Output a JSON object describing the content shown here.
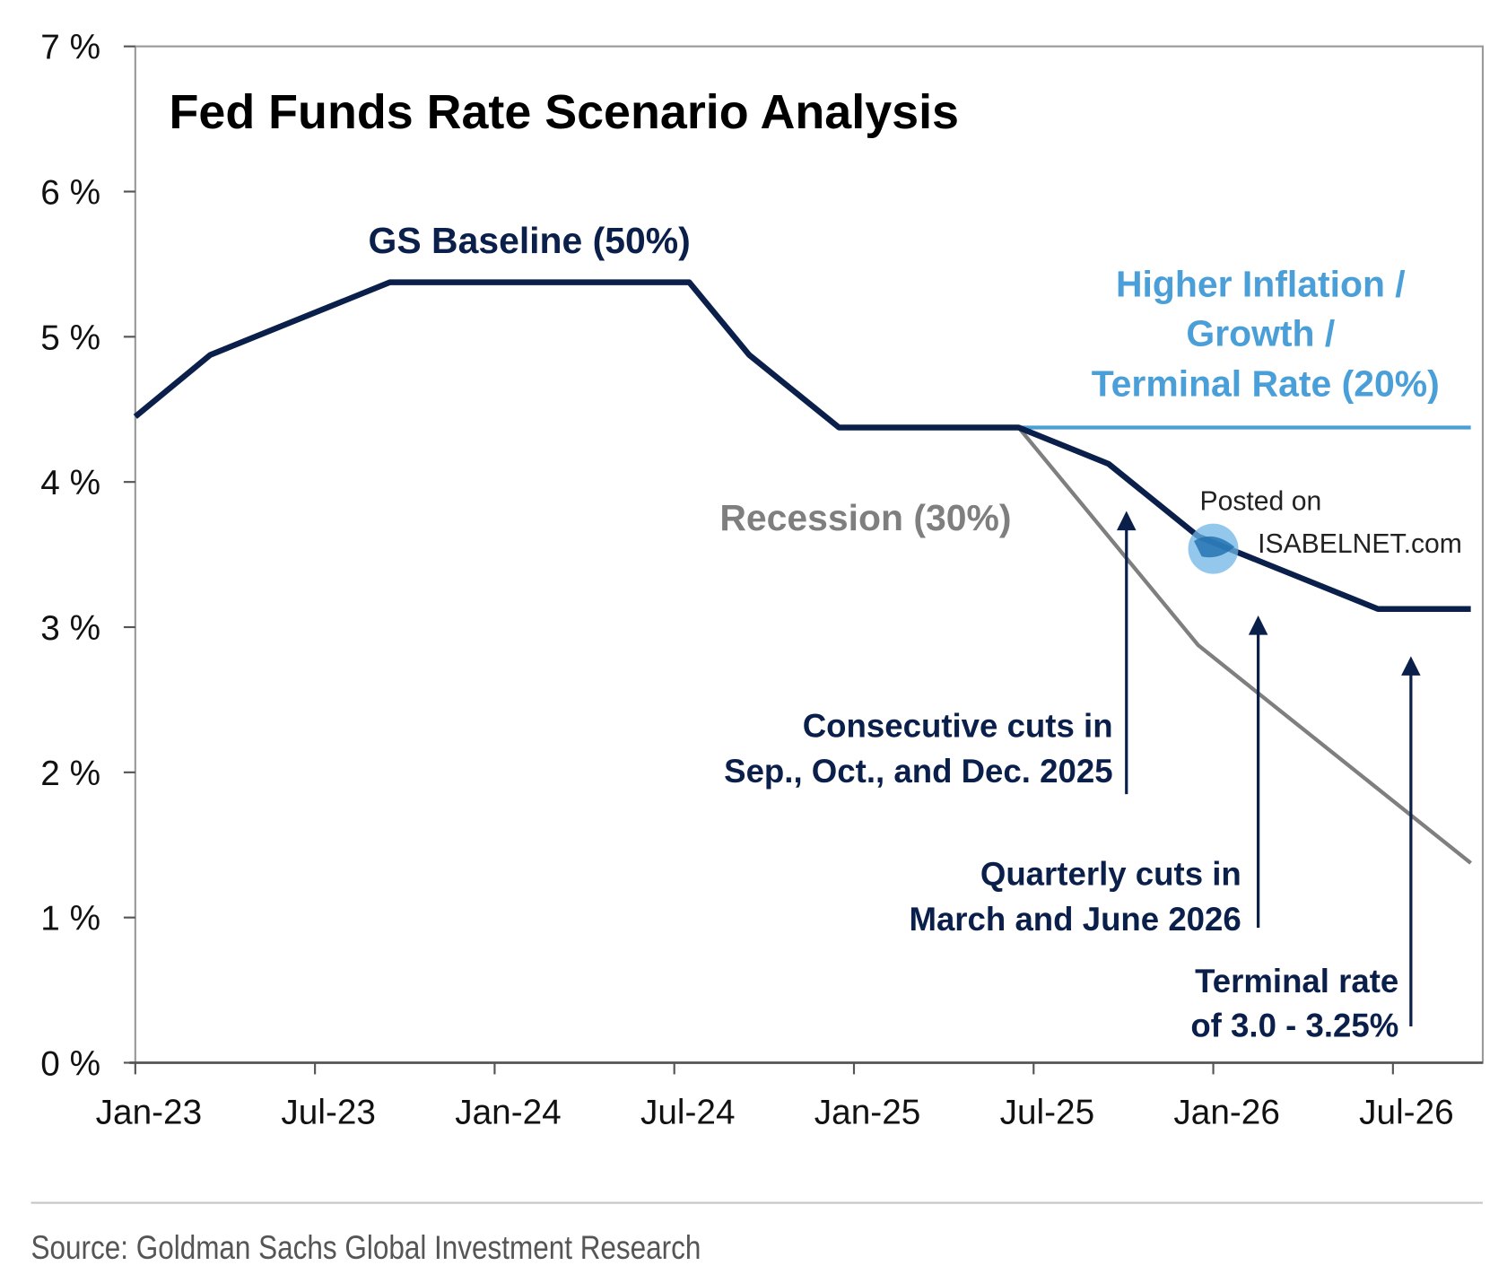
{
  "chart_data": {
    "type": "line",
    "title": "Fed Funds Rate Scenario Analysis",
    "xlabel": "",
    "ylabel": "",
    "x_unit": "months since Jan-23",
    "xlim": [
      0,
      45.5
    ],
    "ylim": [
      0,
      7
    ],
    "y_ticks": [
      0,
      1,
      2,
      3,
      4,
      5,
      6,
      7
    ],
    "y_tick_labels": [
      "0 %",
      "1 %",
      "2 %",
      "3 %",
      "4 %",
      "5 %",
      "6 %",
      "7 %"
    ],
    "x_ticks": [
      0,
      6,
      12,
      18,
      24,
      30,
      36,
      42
    ],
    "x_tick_labels": [
      "Jan-23",
      "Jul-23",
      "Jan-24",
      "Jul-24",
      "Jan-25",
      "Jul-25",
      "Jan-26",
      "Jul-26"
    ],
    "grid": false,
    "series": [
      {
        "name": "GS Baseline (50%)",
        "color": "#0b1f4b",
        "points": [
          [
            0,
            4.45
          ],
          [
            2.5,
            4.875
          ],
          [
            8.5,
            5.375
          ],
          [
            18.5,
            5.375
          ],
          [
            20.5,
            4.875
          ],
          [
            23.5,
            4.375
          ],
          [
            29.5,
            4.375
          ],
          [
            32.5,
            4.125
          ],
          [
            35.5,
            3.625
          ],
          [
            38.5,
            3.375
          ],
          [
            41.5,
            3.125
          ],
          [
            44.6,
            3.125
          ]
        ]
      },
      {
        "name": "Higher Inflation / Growth / Terminal Rate (20%)",
        "color": "#4a9fd8",
        "points": [
          [
            29.5,
            4.375
          ],
          [
            44.6,
            4.375
          ]
        ]
      },
      {
        "name": "Recession (30%)",
        "color": "#7f7f7f",
        "points": [
          [
            29.5,
            4.375
          ],
          [
            35.5,
            2.875
          ],
          [
            44.6,
            1.375
          ]
        ]
      }
    ],
    "series_labels": {
      "baseline": "GS Baseline (50%)",
      "higher": [
        "Higher Inflation /",
        "Growth /",
        "Terminal Rate (20%)"
      ],
      "recession": "Recession (30%)"
    },
    "annotations": [
      {
        "lines": [
          "Consecutive cuts in",
          "Sep., Oct., and Dec. 2025"
        ],
        "arrow_x": 33.1,
        "arrow_from": 1.85,
        "arrow_to": 3.8
      },
      {
        "lines": [
          "Quarterly cuts in",
          "March and June 2026"
        ],
        "arrow_x": 37.5,
        "arrow_from": 0.93,
        "arrow_to": 3.08
      },
      {
        "lines": [
          "Terminal rate",
          "of 3.0 - 3.25%"
        ],
        "arrow_x": 42.6,
        "arrow_from": 0.25,
        "arrow_to": 2.8
      }
    ],
    "source": "Source: Goldman Sachs Global Investment Research"
  },
  "watermark": {
    "line1": "Posted on",
    "line2": "ISABELNET.com"
  }
}
